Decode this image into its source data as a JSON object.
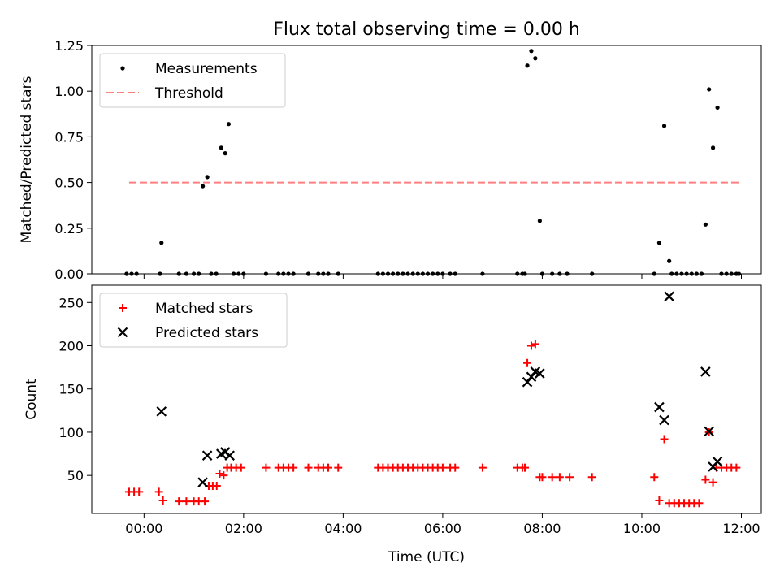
{
  "title": "Flux total observing time = 0.00 h",
  "xlabel": "Time (UTC)",
  "x_ticks": [
    "00:00",
    "02:00",
    "04:00",
    "06:00",
    "08:00",
    "10:00",
    "12:00"
  ],
  "x_tick_hours": [
    0,
    2,
    4,
    6,
    8,
    10,
    12
  ],
  "xlim": [
    -1.05,
    12.4
  ],
  "chart_data": [
    {
      "type": "scatter",
      "ylabel": "Matched/Predicted stars",
      "ylim": [
        0,
        1.25
      ],
      "y_ticks": [
        0,
        0.25,
        0.5,
        0.75,
        1.0,
        1.25
      ],
      "y_tick_labels": [
        "0.00",
        "0.25",
        "0.50",
        "0.75",
        "1.00",
        "1.25"
      ],
      "legend_position": "top-left",
      "series": [
        {
          "name": "Measurements",
          "marker": "dot",
          "color": "#000000",
          "points": [
            [
              -0.35,
              0
            ],
            [
              -0.25,
              0
            ],
            [
              -0.15,
              0
            ],
            [
              0.35,
              0.17
            ],
            [
              0.32,
              0
            ],
            [
              0.7,
              0
            ],
            [
              0.85,
              0
            ],
            [
              1.0,
              0
            ],
            [
              1.1,
              0
            ],
            [
              1.18,
              0.48
            ],
            [
              1.27,
              0.53
            ],
            [
              1.35,
              0
            ],
            [
              1.45,
              0
            ],
            [
              1.55,
              0.69
            ],
            [
              1.63,
              0.66
            ],
            [
              1.7,
              0.82
            ],
            [
              1.8,
              0
            ],
            [
              1.9,
              0
            ],
            [
              2.0,
              0
            ],
            [
              2.45,
              0
            ],
            [
              2.7,
              0
            ],
            [
              2.8,
              0
            ],
            [
              2.9,
              0
            ],
            [
              3.0,
              0
            ],
            [
              3.3,
              0
            ],
            [
              3.5,
              0
            ],
            [
              3.6,
              0
            ],
            [
              3.7,
              0
            ],
            [
              3.9,
              0
            ],
            [
              4.7,
              0
            ],
            [
              4.8,
              0
            ],
            [
              4.9,
              0
            ],
            [
              5.0,
              0
            ],
            [
              5.1,
              0
            ],
            [
              5.2,
              0
            ],
            [
              5.3,
              0
            ],
            [
              5.4,
              0
            ],
            [
              5.5,
              0
            ],
            [
              5.6,
              0
            ],
            [
              5.7,
              0
            ],
            [
              5.8,
              0
            ],
            [
              5.9,
              0
            ],
            [
              6.0,
              0
            ],
            [
              6.15,
              0
            ],
            [
              6.25,
              0
            ],
            [
              6.8,
              0
            ],
            [
              7.5,
              0
            ],
            [
              7.6,
              0
            ],
            [
              7.65,
              0
            ],
            [
              7.7,
              1.14
            ],
            [
              7.78,
              1.22
            ],
            [
              7.86,
              1.18
            ],
            [
              7.95,
              0.29
            ],
            [
              8.0,
              0
            ],
            [
              8.2,
              0
            ],
            [
              8.35,
              0
            ],
            [
              8.5,
              0
            ],
            [
              9.0,
              0
            ],
            [
              10.25,
              0
            ],
            [
              10.35,
              0.17
            ],
            [
              10.45,
              0.81
            ],
            [
              10.55,
              0.07
            ],
            [
              10.6,
              0
            ],
            [
              10.7,
              0
            ],
            [
              10.8,
              0
            ],
            [
              10.9,
              0
            ],
            [
              11.0,
              0
            ],
            [
              11.1,
              0
            ],
            [
              11.2,
              0
            ],
            [
              11.28,
              0.27
            ],
            [
              11.35,
              1.01
            ],
            [
              11.43,
              0.69
            ],
            [
              11.52,
              0.91
            ],
            [
              11.6,
              0
            ],
            [
              11.7,
              0
            ],
            [
              11.8,
              0
            ],
            [
              11.9,
              0
            ],
            [
              11.95,
              0
            ]
          ]
        },
        {
          "name": "Threshold",
          "marker": "dashed-line",
          "color": "#ff7f7f",
          "points": [
            [
              -0.3,
              0.5
            ],
            [
              11.95,
              0.5
            ]
          ]
        }
      ]
    },
    {
      "type": "scatter",
      "ylabel": "Count",
      "ylim": [
        6,
        270
      ],
      "y_ticks": [
        50,
        100,
        150,
        200,
        250
      ],
      "y_tick_labels": [
        "50",
        "100",
        "150",
        "200",
        "250"
      ],
      "legend_position": "top-left",
      "series": [
        {
          "name": "Matched stars",
          "marker": "plus",
          "color": "#ff0000",
          "points": [
            [
              -0.3,
              31
            ],
            [
              -0.2,
              31
            ],
            [
              -0.1,
              31
            ],
            [
              0.3,
              31
            ],
            [
              0.38,
              21
            ],
            [
              0.7,
              20
            ],
            [
              0.85,
              20
            ],
            [
              1.0,
              20
            ],
            [
              1.1,
              20
            ],
            [
              1.22,
              20
            ],
            [
              1.3,
              38
            ],
            [
              1.38,
              38
            ],
            [
              1.46,
              38
            ],
            [
              1.52,
              52
            ],
            [
              1.6,
              50
            ],
            [
              1.67,
              59
            ],
            [
              1.75,
              59
            ],
            [
              1.85,
              59
            ],
            [
              1.95,
              59
            ],
            [
              2.45,
              59
            ],
            [
              2.7,
              59
            ],
            [
              2.8,
              59
            ],
            [
              2.9,
              59
            ],
            [
              3.0,
              59
            ],
            [
              3.3,
              59
            ],
            [
              3.5,
              59
            ],
            [
              3.6,
              59
            ],
            [
              3.7,
              59
            ],
            [
              3.9,
              59
            ],
            [
              4.7,
              59
            ],
            [
              4.8,
              59
            ],
            [
              4.9,
              59
            ],
            [
              5.0,
              59
            ],
            [
              5.1,
              59
            ],
            [
              5.2,
              59
            ],
            [
              5.3,
              59
            ],
            [
              5.4,
              59
            ],
            [
              5.5,
              59
            ],
            [
              5.6,
              59
            ],
            [
              5.7,
              59
            ],
            [
              5.8,
              59
            ],
            [
              5.9,
              59
            ],
            [
              6.0,
              59
            ],
            [
              6.15,
              59
            ],
            [
              6.25,
              59
            ],
            [
              6.8,
              59
            ],
            [
              7.5,
              59
            ],
            [
              7.6,
              59
            ],
            [
              7.65,
              59
            ],
            [
              7.7,
              180
            ],
            [
              7.78,
              200
            ],
            [
              7.86,
              202
            ],
            [
              7.95,
              48
            ],
            [
              8.0,
              48
            ],
            [
              8.2,
              48
            ],
            [
              8.35,
              48
            ],
            [
              8.55,
              48
            ],
            [
              9.0,
              48
            ],
            [
              10.25,
              48
            ],
            [
              10.35,
              21
            ],
            [
              10.45,
              92
            ],
            [
              10.55,
              18
            ],
            [
              10.65,
              18
            ],
            [
              10.75,
              18
            ],
            [
              10.85,
              18
            ],
            [
              10.95,
              18
            ],
            [
              11.05,
              18
            ],
            [
              11.15,
              18
            ],
            [
              11.28,
              45
            ],
            [
              11.35,
              100
            ],
            [
              11.43,
              42
            ],
            [
              11.5,
              59
            ],
            [
              11.6,
              59
            ],
            [
              11.7,
              59
            ],
            [
              11.8,
              59
            ],
            [
              11.9,
              59
            ]
          ]
        },
        {
          "name": "Predicted stars",
          "marker": "x",
          "color": "#000000",
          "points": [
            [
              0.35,
              124
            ],
            [
              1.18,
              42
            ],
            [
              1.27,
              73
            ],
            [
              1.55,
              75
            ],
            [
              1.63,
              77
            ],
            [
              1.72,
              73
            ],
            [
              7.7,
              158
            ],
            [
              7.78,
              164
            ],
            [
              7.86,
              170
            ],
            [
              7.95,
              168
            ],
            [
              10.35,
              129
            ],
            [
              10.45,
              114
            ],
            [
              10.55,
              257
            ],
            [
              11.28,
              170
            ],
            [
              11.35,
              101
            ],
            [
              11.43,
              60
            ],
            [
              11.52,
              66
            ]
          ]
        }
      ]
    }
  ]
}
